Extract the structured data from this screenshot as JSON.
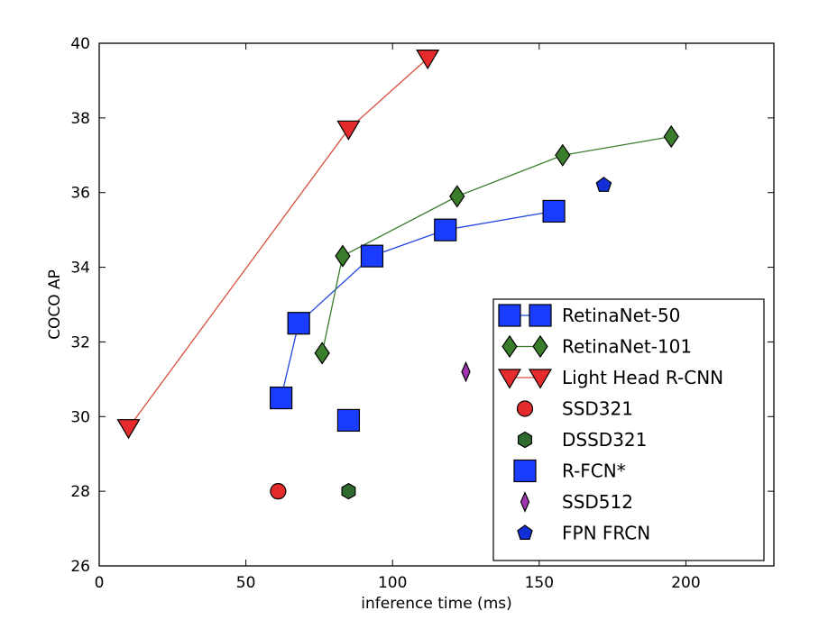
{
  "chart_data": {
    "type": "scatter",
    "title": "",
    "xlabel": "inference time (ms)",
    "ylabel": "COCO AP",
    "xlim": [
      0,
      230
    ],
    "ylim": [
      26,
      40
    ],
    "xticks": [
      0,
      50,
      100,
      150,
      200
    ],
    "yticks": [
      26,
      28,
      30,
      32,
      34,
      36,
      38,
      40
    ],
    "grid": false,
    "legend_position": "lower-right",
    "series": [
      {
        "name": "RetinaNet-50",
        "marker": "square",
        "line": true,
        "color": "#1a3cff",
        "line_color": "#2246e0",
        "points": [
          [
            62,
            30.5
          ],
          [
            68,
            32.5
          ],
          [
            93,
            34.3
          ],
          [
            118,
            35.0
          ],
          [
            155,
            35.5
          ]
        ]
      },
      {
        "name": "RetinaNet-101",
        "marker": "diamond",
        "line": true,
        "color": "#3a7d2a",
        "line_color": "#3a7d2a",
        "points": [
          [
            76,
            31.7
          ],
          [
            83,
            34.3
          ],
          [
            122,
            35.9
          ],
          [
            158,
            37.0
          ],
          [
            195,
            37.5
          ]
        ]
      },
      {
        "name": "Light Head R-CNN",
        "marker": "triangle-down",
        "line": true,
        "color": "#e52b2b",
        "line_color": "#d84f3c",
        "points": [
          [
            10,
            29.7
          ],
          [
            85,
            37.7
          ],
          [
            112,
            39.6
          ]
        ]
      },
      {
        "name": "SSD321",
        "marker": "circle",
        "line": false,
        "color": "#e52b2b",
        "points": [
          [
            61,
            28.0
          ]
        ]
      },
      {
        "name": "DSSD321",
        "marker": "hexagon",
        "line": false,
        "color": "#2f6a2f",
        "points": [
          [
            85,
            28.0
          ]
        ]
      },
      {
        "name": "R-FCN*",
        "marker": "square",
        "line": false,
        "color": "#1a3cff",
        "points": [
          [
            85,
            29.9
          ]
        ]
      },
      {
        "name": "SSD512",
        "marker": "thin-diamond",
        "line": false,
        "color": "#a035b0",
        "points": [
          [
            125,
            31.2
          ]
        ]
      },
      {
        "name": "FPN FRCN",
        "marker": "pentagon",
        "line": false,
        "color": "#1330d8",
        "points": [
          [
            172,
            36.2
          ]
        ]
      }
    ]
  }
}
